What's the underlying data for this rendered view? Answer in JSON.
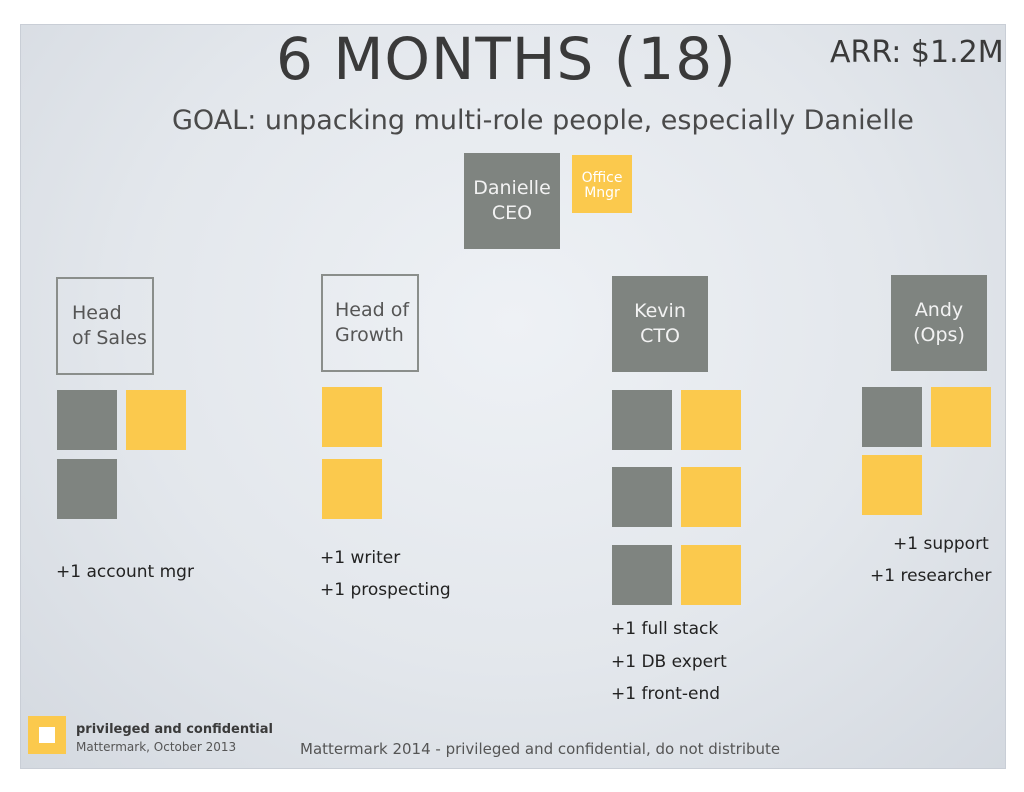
{
  "slide": {
    "title": "6 MONTHS (18)",
    "arr": "ARR: $1.2M",
    "goal": "GOAL: unpacking multi-role people, especially Danielle"
  },
  "top": {
    "ceo_line1": "Danielle",
    "ceo_line2": "CEO",
    "office_line1": "Office",
    "office_line2": "Mngr"
  },
  "departments": {
    "sales": {
      "line1": "Head",
      "line2": "of Sales",
      "hires": [
        "+1 account mgr"
      ]
    },
    "growth": {
      "line1": "Head of",
      "line2": "Growth",
      "hires": [
        "+1 writer",
        "+1 prospecting"
      ]
    },
    "cto": {
      "line1": "Kevin",
      "line2": "CTO",
      "hires": [
        "+1 full stack",
        "+1 DB expert",
        "+1 front-end"
      ]
    },
    "ops": {
      "line1": "Andy",
      "line2": "(Ops)",
      "hires": [
        "+1 support",
        "+1 researcher"
      ]
    }
  },
  "footer": {
    "privileged": "privileged and confidential",
    "company": "Mattermark, October 2013",
    "note": "Mattermark 2014 - privileged and confidential, do not distribute"
  },
  "colors": {
    "gray": "#7f8480",
    "yellow": "#fbc94d"
  }
}
